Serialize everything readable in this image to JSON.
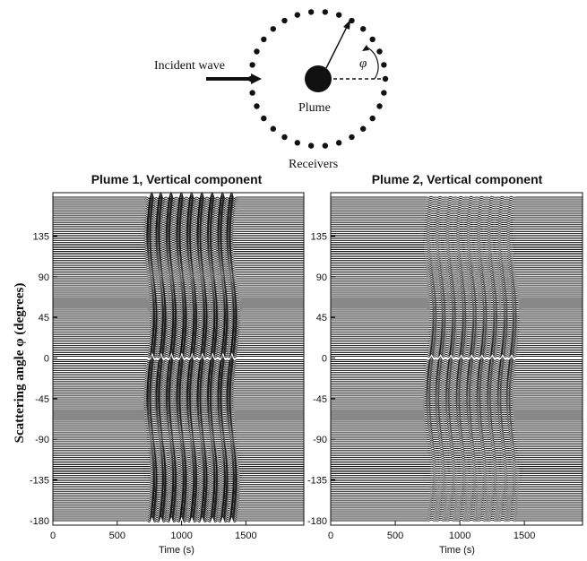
{
  "diagram": {
    "incident_label": "Incident wave",
    "angle_symbol": "φ",
    "plume_label": "Plume",
    "receivers_label": "Receivers",
    "receiver_count": 30
  },
  "shared_ylabel": "Scattering angle φ (degrees)",
  "chart_data": [
    {
      "type": "line",
      "title": "Plume 1, Vertical component",
      "xlabel": "Time (s)",
      "ylabel": "Scattering angle φ (degrees)",
      "xlim": [
        0,
        1950
      ],
      "ylim": [
        -185,
        183
      ],
      "x_ticks": [
        0,
        500,
        1000,
        1500
      ],
      "y_ticks": [
        135,
        90,
        45,
        0,
        -45,
        -90,
        -135,
        -180
      ],
      "trace_spacing_deg": 2,
      "traces_from_deg": -180,
      "traces_to_deg": 178,
      "highlighted_trace_deg": 0,
      "packet_window_s": [
        700,
        1450
      ],
      "wavelet_centers_s": [
        770,
        840,
        920,
        1000,
        1080,
        1160,
        1240,
        1320,
        1390
      ],
      "max_amplitude_deg": 5
    },
    {
      "type": "line",
      "title": "Plume 2, Vertical component",
      "xlabel": "Time (s)",
      "ylabel": "",
      "xlim": [
        0,
        1950
      ],
      "ylim": [
        -185,
        183
      ],
      "x_ticks": [
        0,
        500,
        1000,
        1500
      ],
      "y_ticks": [
        135,
        90,
        45,
        0,
        -45,
        -90,
        -135,
        -180
      ],
      "trace_spacing_deg": 2,
      "traces_from_deg": -180,
      "traces_to_deg": 178,
      "highlighted_trace_deg": 0,
      "packet_window_s": [
        700,
        1450
      ],
      "wavelet_centers_s": [
        780,
        850,
        930,
        1010,
        1090,
        1170,
        1250,
        1330,
        1400
      ],
      "max_amplitude_deg": 3
    }
  ]
}
